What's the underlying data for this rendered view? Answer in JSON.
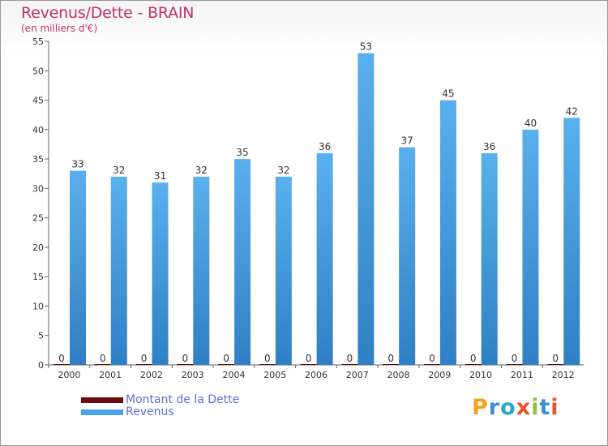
{
  "chart_data": {
    "type": "bar",
    "title": "Revenus/Dette - BRAIN",
    "subtitle": "(en milliers d'€)",
    "categories": [
      "2000",
      "2001",
      "2002",
      "2003",
      "2004",
      "2005",
      "2006",
      "2007",
      "2008",
      "2009",
      "2010",
      "2011",
      "2012"
    ],
    "series": [
      {
        "name": "Montant de la Dette",
        "color": "#6b0d0d",
        "values": [
          0,
          0,
          0,
          0,
          0,
          0,
          0,
          0,
          0,
          0,
          0,
          0,
          0
        ]
      },
      {
        "name": "Revenus",
        "color": "#4aa3e8",
        "values": [
          33,
          32,
          31,
          32,
          35,
          32,
          36,
          53,
          37,
          45,
          36,
          40,
          42
        ]
      }
    ],
    "ylim": [
      0,
      55
    ],
    "yticks": [
      0,
      5,
      10,
      15,
      20,
      25,
      30,
      35,
      40,
      45,
      50,
      55
    ],
    "grid": false,
    "legend_position": "bottom-left"
  },
  "logo": {
    "text": "Proxiti",
    "letters": [
      "P",
      "r",
      "o",
      "x",
      "i",
      "t",
      "i"
    ]
  }
}
